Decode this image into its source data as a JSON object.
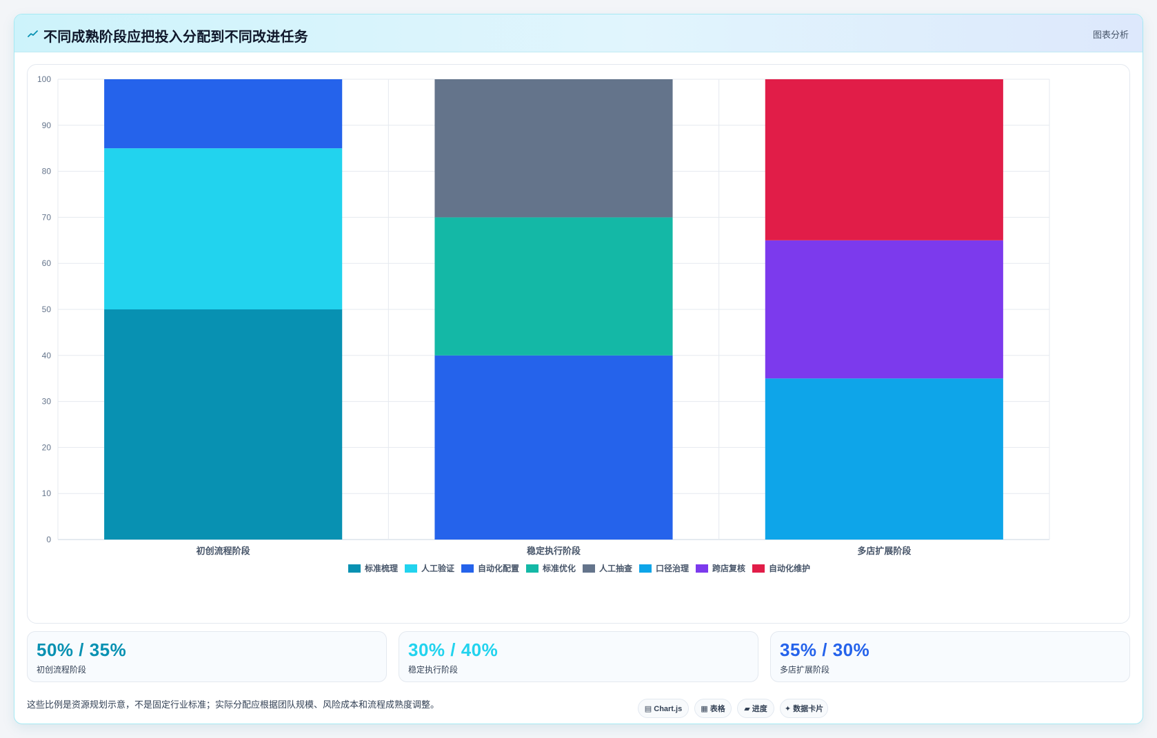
{
  "header": {
    "title": "不同成熟阶段应把投入分配到不同改进任务",
    "link": "图表分析",
    "icon": "trend-line-icon"
  },
  "chart_data": {
    "type": "bar",
    "stacked": true,
    "title": "",
    "xlabel": "",
    "ylabel": "",
    "ylim": [
      0,
      100
    ],
    "yticks": [
      0,
      10,
      20,
      30,
      40,
      50,
      60,
      70,
      80,
      90,
      100
    ],
    "grid": true,
    "legend_position": "bottom",
    "categories": [
      "初创流程阶段",
      "稳定执行阶段",
      "多店扩展阶段"
    ],
    "series": [
      {
        "name": "标准梳理",
        "color": "#0891b2",
        "values": [
          50,
          0,
          0
        ]
      },
      {
        "name": "人工验证",
        "color": "#22d3ee",
        "values": [
          35,
          0,
          0
        ]
      },
      {
        "name": "自动化配置",
        "color": "#2563eb",
        "values": [
          15,
          40,
          0
        ]
      },
      {
        "name": "标准优化",
        "color": "#14b8a6",
        "values": [
          0,
          30,
          0
        ]
      },
      {
        "name": "人工抽查",
        "color": "#64748b",
        "values": [
          0,
          30,
          0
        ]
      },
      {
        "name": "口径治理",
        "color": "#0ea5e9",
        "values": [
          0,
          0,
          35
        ]
      },
      {
        "name": "跨店复核",
        "color": "#7c3aed",
        "values": [
          0,
          0,
          30
        ]
      },
      {
        "name": "自动化维护",
        "color": "#e11d48",
        "values": [
          0,
          0,
          35
        ]
      }
    ]
  },
  "stats": [
    {
      "value": "50% / 35%",
      "label": "初创流程阶段",
      "color": "#0891b2"
    },
    {
      "value": "30% / 40%",
      "label": "稳定执行阶段",
      "color": "#22d3ee"
    },
    {
      "value": "35% / 30%",
      "label": "多店扩展阶段",
      "color": "#2563eb"
    }
  ],
  "footnote": "这些比例是资源规划示意，不是固定行业标准；实际分配应根据团队规模、风险成本和流程成熟度调整。",
  "pills": [
    {
      "label": "Chart.js",
      "icon": "chart-icon"
    },
    {
      "label": "表格",
      "icon": "table-icon"
    },
    {
      "label": "进度",
      "icon": "progress-icon"
    },
    {
      "label": "数据卡片",
      "icon": "sparkle-icon"
    }
  ]
}
